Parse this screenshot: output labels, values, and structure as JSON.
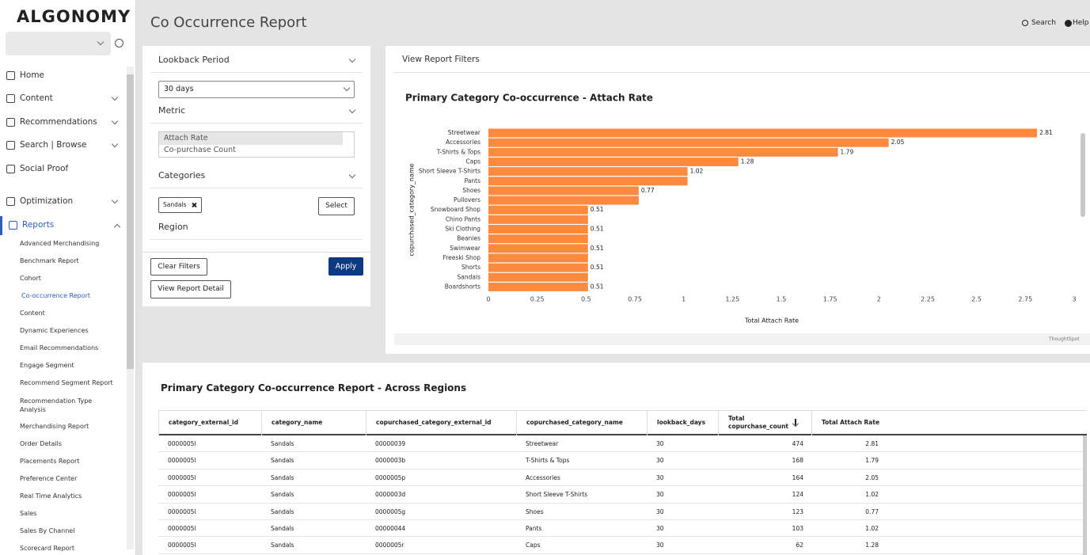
{
  "sidebar": {
    "logo": "ALGONOMY",
    "menu": [
      "Home",
      "Content",
      "Recommendations",
      "Search | Browse",
      "Social Proof",
      "Optimization",
      "Reports"
    ],
    "submenu": [
      "Advanced Merchandising",
      "Benchmark Report",
      "Cohort",
      "Co-occurrence Report",
      "Content",
      "Dynamic Experiences",
      "Email Recommendations",
      "Engage Segment",
      "Recommend Segment Report",
      "Recommendation Type Analysis",
      "Merchandising Report",
      "Order Details",
      "Placements Report",
      "Preference Center",
      "Real Time Analytics",
      "Sales",
      "Sales By Channel",
      "Scorecard Report"
    ]
  },
  "header": {
    "title": "Co Occurrence Report",
    "search": "Search",
    "help": "Help"
  },
  "filters": {
    "lookback_label": "Lookback Period",
    "lookback_value": "30 days",
    "metric_label": "Metric",
    "metric_options": [
      "Attach Rate",
      "Co-purchase Count"
    ],
    "categories_label": "Categories",
    "chip": "Sandals",
    "select": "Select",
    "region_label": "Region",
    "clear": "Clear Filters",
    "apply": "Apply",
    "detail": "View Report Detail"
  },
  "report_filters": "View Report Filters",
  "chart_data": {
    "type": "bar",
    "orientation": "horizontal",
    "title": "Primary Category Co-occurrence - Attach Rate",
    "y_label": "copurchased_category_name",
    "x_label": "Total Attach Rate",
    "watermark": "ThoughtSpot",
    "color": "#fd8a3e",
    "categories": [
      "Streetwear",
      "Accessories",
      "T-Shirts & Tops",
      "Caps",
      "Short Sleeve T-Shirts",
      "Pants",
      "Shoes",
      "Pullovers",
      "Snowboard Shop",
      "Chino Pants",
      "Ski Clothing",
      "Beanies",
      "Swimwear",
      "Freeski Shop",
      "Shorts",
      "Sandals",
      "Boardshorts"
    ],
    "values": [
      2.81,
      2.05,
      1.79,
      1.28,
      1.02,
      1.02,
      0.77,
      0.77,
      0.51,
      0.51,
      0.51,
      0.51,
      0.51,
      0.51,
      0.51,
      0.51,
      0.51
    ],
    "value_labels": [
      "2.81",
      "2.05",
      "1.79",
      "1.28",
      "1.02",
      null,
      "0.77",
      null,
      "0.51",
      null,
      "0.51",
      null,
      "0.51",
      null,
      "0.51",
      null,
      "0.51"
    ],
    "xlim": [
      0,
      3
    ],
    "xticks": [
      0,
      0.25,
      0.5,
      0.75,
      1,
      1.25,
      1.5,
      1.75,
      2,
      2.25,
      2.5,
      2.75,
      3
    ]
  },
  "table": {
    "title": "Primary Category Co-occurrence Report - Across Regions",
    "columns": [
      "category_external_id",
      "category_name",
      "copurchased_category_external_id",
      "copurchased_category_name",
      "lookback_days",
      "Total copurchase_count",
      "Total Attach Rate"
    ],
    "rows": [
      [
        "0000005l",
        "Sandals",
        "00000039",
        "Streetwear",
        "30",
        "474",
        "2.81"
      ],
      [
        "0000005l",
        "Sandals",
        "0000003b",
        "T-Shirts & Tops",
        "30",
        "168",
        "1.79"
      ],
      [
        "0000005l",
        "Sandals",
        "0000005p",
        "Accessories",
        "30",
        "164",
        "2.05"
      ],
      [
        "0000005l",
        "Sandals",
        "0000003d",
        "Short Sleeve T-Shirts",
        "30",
        "124",
        "1.02"
      ],
      [
        "0000005l",
        "Sandals",
        "0000005g",
        "Shoes",
        "30",
        "123",
        "0.77"
      ],
      [
        "0000005l",
        "Sandals",
        "00000044",
        "Pants",
        "30",
        "103",
        "1.02"
      ],
      [
        "0000005l",
        "Sandals",
        "0000005r",
        "Caps",
        "30",
        "62",
        "1.28"
      ]
    ]
  }
}
